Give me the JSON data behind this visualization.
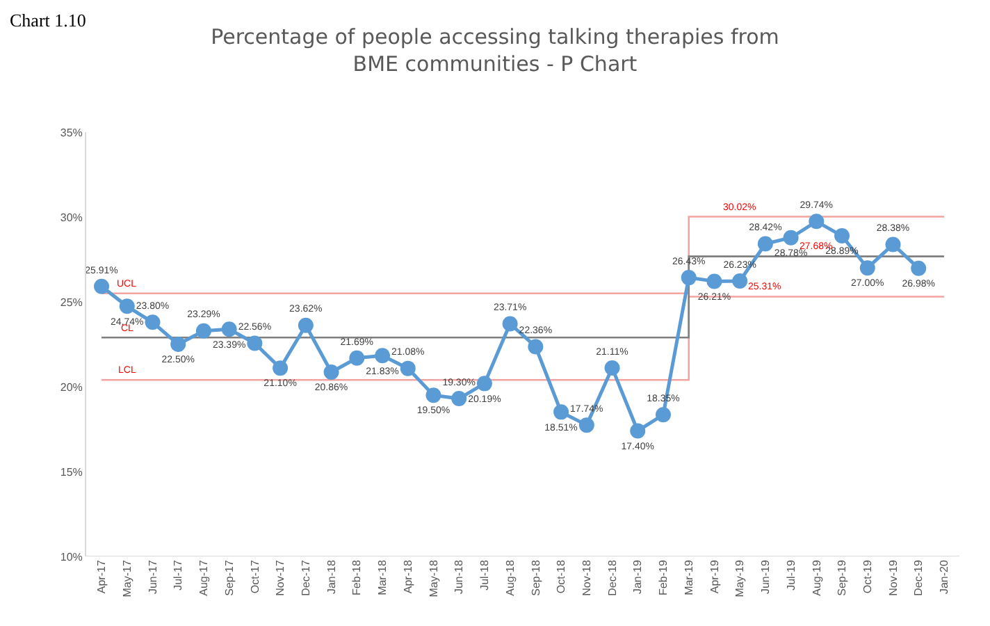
{
  "chart_data": {
    "type": "line",
    "title": "Percentage of people accessing talking therapies from\nBME communities - P Chart",
    "categories": [
      "Apr-17",
      "May-17",
      "Jun-17",
      "Jul-17",
      "Aug-17",
      "Sep-17",
      "Oct-17",
      "Nov-17",
      "Dec-17",
      "Jan-18",
      "Feb-18",
      "Mar-18",
      "Apr-18",
      "May-18",
      "Jun-18",
      "Jul-18",
      "Aug-18",
      "Sep-18",
      "Oct-18",
      "Nov-18",
      "Dec-18",
      "Jan-19",
      "Feb-19",
      "Mar-19",
      "Apr-19",
      "May-19",
      "Jun-19",
      "Jul-19",
      "Aug-19",
      "Sep-19",
      "Oct-19",
      "Nov-19",
      "Dec-19",
      "Jan-20"
    ],
    "series": [
      {
        "type": "step",
        "color": "#f4a3a0",
        "marker": "none",
        "values": [
          25.5,
          25.5,
          25.5,
          25.5,
          25.5,
          25.5,
          25.5,
          25.5,
          25.5,
          25.5,
          25.5,
          25.5,
          25.5,
          25.5,
          25.5,
          25.5,
          25.5,
          25.5,
          25.5,
          25.5,
          25.5,
          25.5,
          25.5,
          30.02,
          30.02,
          30.02,
          30.02,
          30.02,
          30.02,
          30.02,
          30.02,
          30.02,
          30.02,
          30.02
        ]
      },
      {
        "type": "step",
        "color": "#f4a3a0",
        "marker": "none",
        "values": [
          20.4,
          20.4,
          20.4,
          20.4,
          20.4,
          20.4,
          20.4,
          20.4,
          20.4,
          20.4,
          20.4,
          20.4,
          20.4,
          20.4,
          20.4,
          20.4,
          20.4,
          20.4,
          20.4,
          20.4,
          20.4,
          20.4,
          20.4,
          25.31,
          25.31,
          25.31,
          25.31,
          25.31,
          25.31,
          25.31,
          25.31,
          25.31,
          25.31,
          25.31
        ]
      },
      {
        "type": "step",
        "color": "#7f7f7f",
        "marker": "none",
        "values": [
          22.9,
          22.9,
          22.9,
          22.9,
          22.9,
          22.9,
          22.9,
          22.9,
          22.9,
          22.9,
          22.9,
          22.9,
          22.9,
          22.9,
          22.9,
          22.9,
          22.9,
          22.9,
          22.9,
          22.9,
          22.9,
          22.9,
          22.9,
          27.68,
          27.68,
          27.68,
          27.68,
          27.68,
          27.68,
          27.68,
          27.68,
          27.68,
          27.68,
          27.68
        ]
      },
      {
        "color": "#5b9bd5",
        "marker": "circle",
        "values": [
          25.91,
          24.74,
          23.8,
          22.5,
          23.29,
          23.39,
          22.56,
          21.1,
          23.62,
          20.86,
          21.69,
          21.83,
          21.08,
          19.5,
          19.3,
          20.19,
          23.71,
          22.36,
          18.51,
          17.74,
          21.11,
          17.4,
          18.35,
          26.43,
          26.21,
          26.23,
          28.42,
          28.78,
          29.74,
          28.89,
          27.0,
          28.38,
          26.98,
          null
        ],
        "value_labels": [
          "25.91%",
          "24.74%",
          "23.80%",
          "22.50%",
          "23.29%",
          "23.39%",
          "22.56%",
          "21.10%",
          "23.62%",
          "20.86%",
          "21.69%",
          "21.83%",
          "21.08%",
          "19.50%",
          "19.30%",
          "20.19%",
          "23.71%",
          "22.36%",
          "18.51%",
          "17.74%",
          "21.11%",
          "17.40%",
          "18.35%",
          "26.43%",
          "26.21%",
          "26.23%",
          "28.42%",
          "28.78%",
          "29.74%",
          "28.89%",
          "27.00%",
          "28.38%",
          "26.98%",
          null
        ]
      }
    ],
    "ylim": [
      10,
      35
    ],
    "yticks": [
      {
        "value": 10,
        "label": "10%"
      },
      {
        "value": 15,
        "label": "15%"
      },
      {
        "value": 20,
        "label": "20%"
      },
      {
        "value": 25,
        "label": "25%"
      },
      {
        "value": 30,
        "label": "30%"
      },
      {
        "value": 35,
        "label": "35%"
      }
    ],
    "grid": false,
    "annotations": [
      "Chart 1.10",
      {
        "text": "UCL",
        "x": "May-17",
        "y": 25.5
      },
      {
        "text": "CL",
        "x": "May-17",
        "y": 22.9
      },
      {
        "text": "LCL",
        "x": "May-17",
        "y": 20.4
      },
      {
        "text": "30.02%",
        "x": "May-19",
        "y": 30.02
      },
      {
        "text": "27.68%",
        "x": "Aug-19",
        "y": 27.68
      },
      {
        "text": "25.31%",
        "x": "Jun-19",
        "y": 25.31
      }
    ]
  }
}
